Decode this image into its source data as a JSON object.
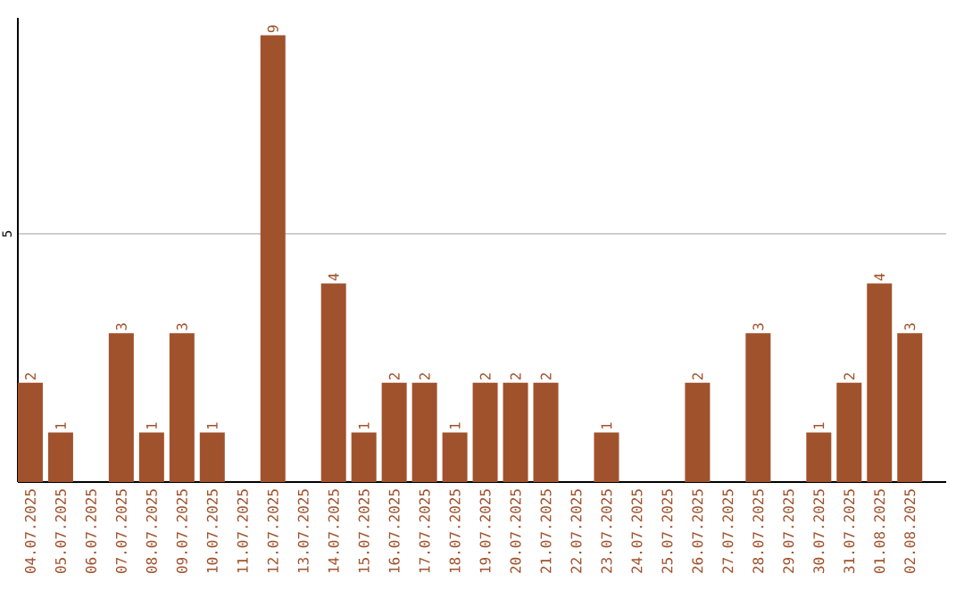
{
  "chart_data": {
    "type": "bar",
    "categories": [
      "04.07.2025",
      "05.07.2025",
      "06.07.2025",
      "07.07.2025",
      "08.07.2025",
      "09.07.2025",
      "10.07.2025",
      "11.07.2025",
      "12.07.2025",
      "13.07.2025",
      "14.07.2025",
      "15.07.2025",
      "16.07.2025",
      "17.07.2025",
      "18.07.2025",
      "19.07.2025",
      "20.07.2025",
      "21.07.2025",
      "22.07.2025",
      "23.07.2025",
      "24.07.2025",
      "25.07.2025",
      "26.07.2025",
      "27.07.2025",
      "28.07.2025",
      "29.07.2025",
      "30.07.2025",
      "31.07.2025",
      "01.08.2025",
      "02.08.2025"
    ],
    "values": [
      2,
      1,
      0,
      3,
      1,
      3,
      1,
      0,
      9,
      0,
      4,
      1,
      2,
      2,
      1,
      2,
      2,
      2,
      0,
      1,
      0,
      0,
      2,
      0,
      3,
      0,
      1,
      2,
      4,
      3
    ],
    "value_labels": [
      "2",
      "1",
      null,
      "3",
      "1",
      "3",
      "1",
      null,
      "9",
      null,
      "4",
      "1",
      "2",
      "2",
      "1",
      "2",
      "2",
      "2",
      null,
      "1",
      null,
      null,
      "2",
      null,
      "3",
      null,
      "1",
      "2",
      "4",
      "3"
    ],
    "color": "#a0522d",
    "ylim": [
      0,
      9.35
    ],
    "yticks": [
      5
    ],
    "grid": "y"
  }
}
